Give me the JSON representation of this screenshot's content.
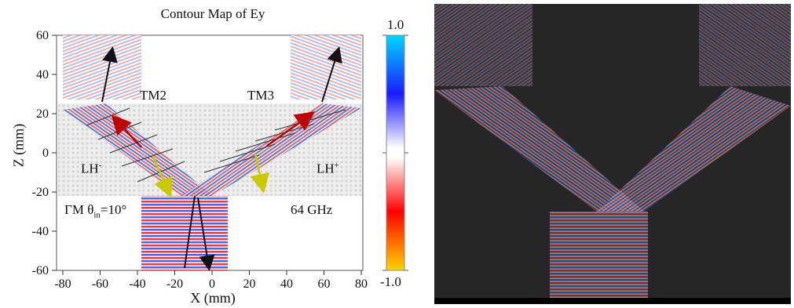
{
  "left_panel": {
    "title": "Contour Map of Ey",
    "xlabel": "X (mm)",
    "ylabel": "Z (mm)",
    "annotations": {
      "tm2": "TM2",
      "tm3": "TM3",
      "lh_minus_base": "LH",
      "lh_minus_sup": "-",
      "lh_plus_base": "LH",
      "lh_plus_sup": "+",
      "incidence_prefix": "ΓM θ",
      "incidence_sub": "in",
      "incidence_value": "=10°",
      "frequency": "64 GHz"
    }
  },
  "colorbar": {
    "max_label": "1.0",
    "min_label": "-1.0",
    "colors": [
      "#00d8ff",
      "#1a1aff",
      "#ffffff",
      "#ff0000",
      "#ffd400"
    ]
  },
  "right_panel": {
    "background": "#262626"
  },
  "chart_data": {
    "type": "heatmap",
    "title": "Contour Map of Ey",
    "xlabel": "X (mm)",
    "ylabel": "Z (mm)",
    "xlim": [
      -80,
      80
    ],
    "ylim": [
      -60,
      60
    ],
    "x_ticks": [
      -80,
      -60,
      -40,
      -20,
      0,
      20,
      40,
      60,
      80
    ],
    "y_ticks": [
      -60,
      -40,
      -20,
      0,
      20,
      40,
      60
    ],
    "colorbar_range": [
      -1.0,
      1.0
    ],
    "grid": false
  }
}
